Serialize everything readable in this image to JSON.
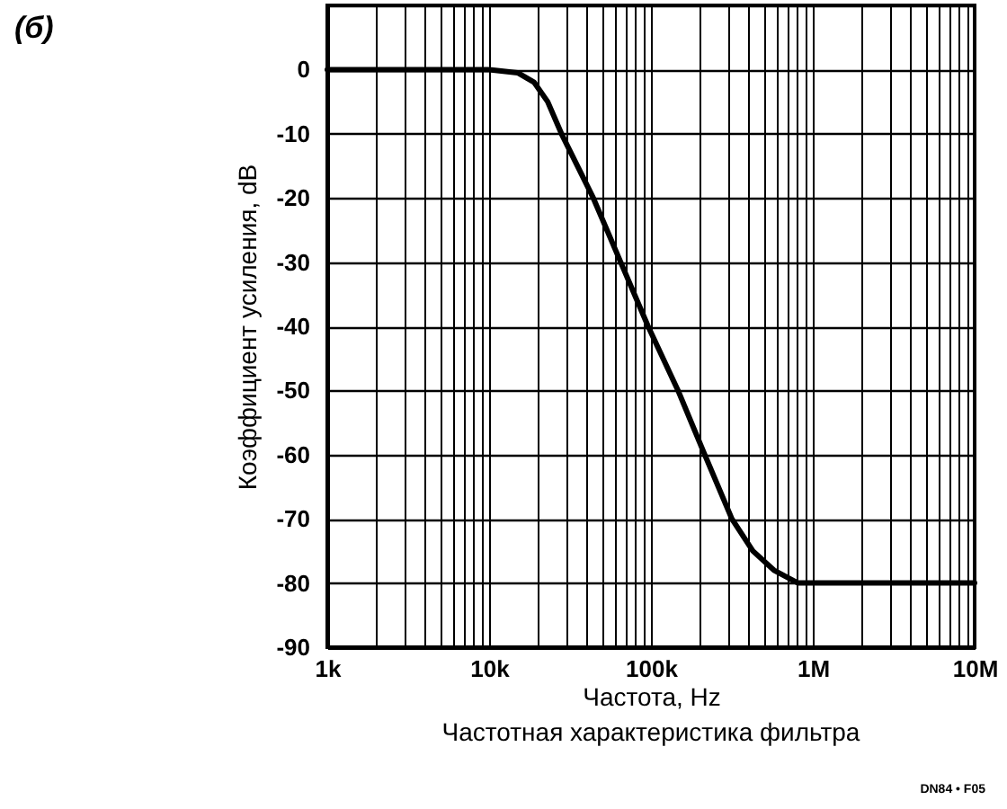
{
  "chart_data": {
    "type": "line",
    "title": "Частотная характеристика фильтра",
    "xlabel": "Частота, Hz",
    "ylabel": "Коэффициент усиления, dB",
    "annotations": [
      "(б)",
      "DN84 • F05"
    ],
    "x": [
      1000,
      10000,
      15000,
      19000,
      23000,
      28000,
      44000,
      65000,
      96000,
      147000,
      215000,
      316000,
      426000,
      575000,
      810000,
      10000000
    ],
    "series": [
      {
        "color": "#000000",
        "values": [
          0,
          0,
          -0.5,
          -2,
          -5,
          -10,
          -20,
          -30,
          -40,
          -50,
          -60,
          -70,
          -75,
          -78,
          -80,
          -80
        ]
      }
    ],
    "log": "x",
    "xlim": [
      1000,
      10000000
    ],
    "ylim": [
      -90,
      10
    ],
    "xticks": [
      {
        "value": 1000,
        "label": "1k"
      },
      {
        "value": 2000,
        "label": null
      },
      {
        "value": 3000,
        "label": null
      },
      {
        "value": 4000,
        "label": null
      },
      {
        "value": 5000,
        "label": null
      },
      {
        "value": 6000,
        "label": null
      },
      {
        "value": 7000,
        "label": null
      },
      {
        "value": 8000,
        "label": null
      },
      {
        "value": 9000,
        "label": null
      },
      {
        "value": 10000,
        "label": "10k"
      },
      {
        "value": 20000,
        "label": null
      },
      {
        "value": 30000,
        "label": null
      },
      {
        "value": 40000,
        "label": null
      },
      {
        "value": 50000,
        "label": null
      },
      {
        "value": 60000,
        "label": null
      },
      {
        "value": 70000,
        "label": null
      },
      {
        "value": 80000,
        "label": null
      },
      {
        "value": 90000,
        "label": null
      },
      {
        "value": 100000,
        "label": "100k"
      },
      {
        "value": 200000,
        "label": null
      },
      {
        "value": 300000,
        "label": null
      },
      {
        "value": 400000,
        "label": null
      },
      {
        "value": 500000,
        "label": null
      },
      {
        "value": 600000,
        "label": null
      },
      {
        "value": 700000,
        "label": null
      },
      {
        "value": 800000,
        "label": null
      },
      {
        "value": 900000,
        "label": null
      },
      {
        "value": 1000000,
        "label": "1M"
      },
      {
        "value": 2000000,
        "label": null
      },
      {
        "value": 3000000,
        "label": null
      },
      {
        "value": 4000000,
        "label": null
      },
      {
        "value": 5000000,
        "label": null
      },
      {
        "value": 6000000,
        "label": null
      },
      {
        "value": 7000000,
        "label": null
      },
      {
        "value": 8000000,
        "label": null
      },
      {
        "value": 9000000,
        "label": null
      },
      {
        "value": 10000000,
        "label": "10M"
      }
    ],
    "yticks": [
      {
        "value": 10,
        "label": null
      },
      0,
      -10,
      -20,
      -30,
      -40,
      -50,
      -60,
      -70,
      -80,
      -90
    ],
    "grid": true,
    "marker": "none",
    "line_style": "solid"
  }
}
